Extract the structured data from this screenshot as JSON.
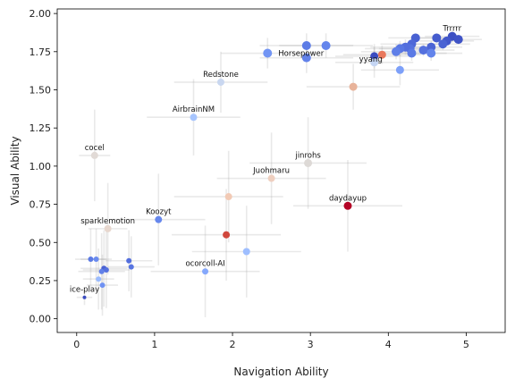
{
  "chart_data": {
    "type": "scatter",
    "xlabel": "Navigation Ability",
    "ylabel": "Visual Ability",
    "xlim": [
      -0.25,
      5.5
    ],
    "ylim": [
      -0.09,
      2.03
    ],
    "xticks": [
      0,
      1,
      2,
      3,
      4,
      5
    ],
    "yticks": [
      0.0,
      0.25,
      0.5,
      0.75,
      1.0,
      1.25,
      1.5,
      1.75,
      2.0
    ],
    "ytick_labels": [
      "0.00",
      "0.25",
      "0.50",
      "0.75",
      "1.00",
      "1.25",
      "1.50",
      "1.75",
      "2.00"
    ],
    "grid": false,
    "error_bars": "light gray crosshairs per point",
    "points": [
      {
        "label": "Trrrrr",
        "x": 4.82,
        "y": 1.85,
        "xerr": 0.35,
        "yerr": 0.04,
        "color": "#3d50c3",
        "size": 5
      },
      {
        "label": "",
        "x": 4.9,
        "y": 1.83,
        "xerr": 0.3,
        "yerr": 0.03,
        "color": "#3f53c6",
        "size": 5
      },
      {
        "label": "",
        "x": 4.75,
        "y": 1.82,
        "xerr": 0.35,
        "yerr": 0.03,
        "color": "#4358cb",
        "size": 5
      },
      {
        "label": "",
        "x": 4.7,
        "y": 1.8,
        "xerr": 0.35,
        "yerr": 0.04,
        "color": "#4a63d3",
        "size": 5
      },
      {
        "label": "",
        "x": 4.62,
        "y": 1.84,
        "xerr": 0.3,
        "yerr": 0.03,
        "color": "#455cce",
        "size": 5
      },
      {
        "label": "",
        "x": 4.55,
        "y": 1.78,
        "xerr": 0.4,
        "yerr": 0.04,
        "color": "#4b64d5",
        "size": 5
      },
      {
        "label": "",
        "x": 4.45,
        "y": 1.76,
        "xerr": 0.4,
        "yerr": 0.04,
        "color": "#5470de",
        "size": 5
      },
      {
        "label": "",
        "x": 4.35,
        "y": 1.84,
        "xerr": 0.35,
        "yerr": 0.03,
        "color": "#4961d2",
        "size": 5
      },
      {
        "label": "",
        "x": 4.3,
        "y": 1.8,
        "xerr": 0.4,
        "yerr": 0.05,
        "color": "#4e68d8",
        "size": 5
      },
      {
        "label": "",
        "x": 4.28,
        "y": 1.77,
        "xerr": 0.4,
        "yerr": 0.05,
        "color": "#5572df",
        "size": 5
      },
      {
        "label": "",
        "x": 4.22,
        "y": 1.78,
        "xerr": 0.45,
        "yerr": 0.05,
        "color": "#536edd",
        "size": 5
      },
      {
        "label": "",
        "x": 4.15,
        "y": 1.77,
        "xerr": 0.45,
        "yerr": 0.05,
        "color": "#5977e3",
        "size": 5
      },
      {
        "label": "",
        "x": 4.1,
        "y": 1.75,
        "xerr": 0.45,
        "yerr": 0.05,
        "color": "#5f7fe8",
        "size": 5
      },
      {
        "label": "",
        "x": 4.3,
        "y": 1.74,
        "xerr": 0.45,
        "yerr": 0.05,
        "color": "#5b7ae5",
        "size": 5
      },
      {
        "label": "",
        "x": 4.55,
        "y": 1.74,
        "xerr": 0.4,
        "yerr": 0.05,
        "color": "#6384eb",
        "size": 5
      },
      {
        "label": "",
        "x": 4.15,
        "y": 1.63,
        "xerr": 0.5,
        "yerr": 0.1,
        "color": "#7da0f9",
        "size": 4.5
      },
      {
        "label": "",
        "x": 3.92,
        "y": 1.73,
        "xerr": 0.5,
        "yerr": 0.06,
        "color": "#e9785d",
        "size": 4.5
      },
      {
        "label": "yyang",
        "x": 3.82,
        "y": 1.72,
        "xerr": 0.5,
        "yerr": 0.08,
        "color": "#3b4cc0",
        "size": 4.5
      },
      {
        "label": "",
        "x": 3.82,
        "y": 1.68,
        "xerr": 0.5,
        "yerr": 0.1,
        "color": "#c4d5f3",
        "size": 4.5
      },
      {
        "label": "",
        "x": 3.55,
        "y": 1.52,
        "xerr": 0.6,
        "yerr": 0.15,
        "color": "#e8b39a",
        "size": 4.5
      },
      {
        "label": "",
        "x": 3.2,
        "y": 1.79,
        "xerr": 0.6,
        "yerr": 0.08,
        "color": "#6485ec",
        "size": 5
      },
      {
        "label": "",
        "x": 2.95,
        "y": 1.79,
        "xerr": 0.6,
        "yerr": 0.08,
        "color": "#5d7ce6",
        "size": 5
      },
      {
        "label": "",
        "x": 2.95,
        "y": 1.71,
        "xerr": 0.6,
        "yerr": 0.1,
        "color": "#6282ea",
        "size": 5
      },
      {
        "label": "Horsepower",
        "x": 2.45,
        "y": 1.74,
        "xerr": 0.6,
        "yerr": 0.1,
        "color": "#7295f4",
        "size": 5
      },
      {
        "label": "Redstone",
        "x": 1.85,
        "y": 1.55,
        "xerr": 0.6,
        "yerr": 0.2,
        "color": "#c9d7f0",
        "size": 4
      },
      {
        "label": "AirbrainNM",
        "x": 1.5,
        "y": 1.32,
        "xerr": 0.6,
        "yerr": 0.25,
        "color": "#a7c5fe",
        "size": 4
      },
      {
        "label": "cocel",
        "x": 0.23,
        "y": 1.07,
        "xerr": 0.2,
        "yerr": 0.3,
        "color": "#e1dad6",
        "size": 4
      },
      {
        "label": "jinrohs",
        "x": 2.97,
        "y": 1.02,
        "xerr": 0.75,
        "yerr": 0.3,
        "color": "#ddd9d6",
        "size": 4.5
      },
      {
        "label": "Juohmaru",
        "x": 2.5,
        "y": 0.92,
        "xerr": 0.7,
        "yerr": 0.3,
        "color": "#efcfbf",
        "size": 4
      },
      {
        "label": "",
        "x": 1.95,
        "y": 0.8,
        "xerr": 0.7,
        "yerr": 0.3,
        "color": "#f2cab5",
        "size": 4
      },
      {
        "label": "daydayup",
        "x": 3.48,
        "y": 0.74,
        "xerr": 0.7,
        "yerr": 0.3,
        "color": "#b40426",
        "size": 4.5
      },
      {
        "label": "Koozyt",
        "x": 1.05,
        "y": 0.65,
        "xerr": 0.6,
        "yerr": 0.3,
        "color": "#6687ed",
        "size": 4
      },
      {
        "label": "sparklemotion",
        "x": 0.4,
        "y": 0.59,
        "xerr": 0.25,
        "yerr": 0.3,
        "color": "#e7d7ce",
        "size": 4
      },
      {
        "label": "",
        "x": 1.92,
        "y": 0.55,
        "xerr": 0.7,
        "yerr": 0.3,
        "color": "#d0473d",
        "size": 4
      },
      {
        "label": "",
        "x": 2.18,
        "y": 0.44,
        "xerr": 0.7,
        "yerr": 0.3,
        "color": "#9ebeff",
        "size": 4
      },
      {
        "label": "",
        "x": 0.18,
        "y": 0.39,
        "xerr": 0.2,
        "yerr": 0.2,
        "color": "#5b7ae5",
        "size": 3
      },
      {
        "label": "",
        "x": 0.25,
        "y": 0.39,
        "xerr": 0.2,
        "yerr": 0.2,
        "color": "#6a8bef",
        "size": 3
      },
      {
        "label": "",
        "x": 0.67,
        "y": 0.38,
        "xerr": 0.3,
        "yerr": 0.2,
        "color": "#536edd",
        "size": 3
      },
      {
        "label": "",
        "x": 0.7,
        "y": 0.34,
        "xerr": 0.3,
        "yerr": 0.2,
        "color": "#5875e1",
        "size": 3
      },
      {
        "label": "",
        "x": 0.35,
        "y": 0.33,
        "xerr": 0.3,
        "yerr": 0.25,
        "color": "#4961d2",
        "size": 3
      },
      {
        "label": "",
        "x": 0.38,
        "y": 0.32,
        "xerr": 0.3,
        "yerr": 0.25,
        "color": "#5470de",
        "size": 3
      },
      {
        "label": "",
        "x": 0.32,
        "y": 0.31,
        "xerr": 0.3,
        "yerr": 0.25,
        "color": "#6180e9",
        "size": 3
      },
      {
        "label": "ocorcoll-AI",
        "x": 1.65,
        "y": 0.31,
        "xerr": 0.7,
        "yerr": 0.3,
        "color": "#85a8fc",
        "size": 3.5
      },
      {
        "label": "",
        "x": 0.28,
        "y": 0.26,
        "xerr": 0.2,
        "yerr": 0.2,
        "color": "#9abbff",
        "size": 3
      },
      {
        "label": "",
        "x": 0.33,
        "y": 0.22,
        "xerr": 0.2,
        "yerr": 0.2,
        "color": "#6f92f3",
        "size": 3
      },
      {
        "label": "ice-play",
        "x": 0.1,
        "y": 0.14,
        "xerr": 0.1,
        "yerr": 0.05,
        "color": "#3b4cc0",
        "size": 2
      }
    ]
  }
}
